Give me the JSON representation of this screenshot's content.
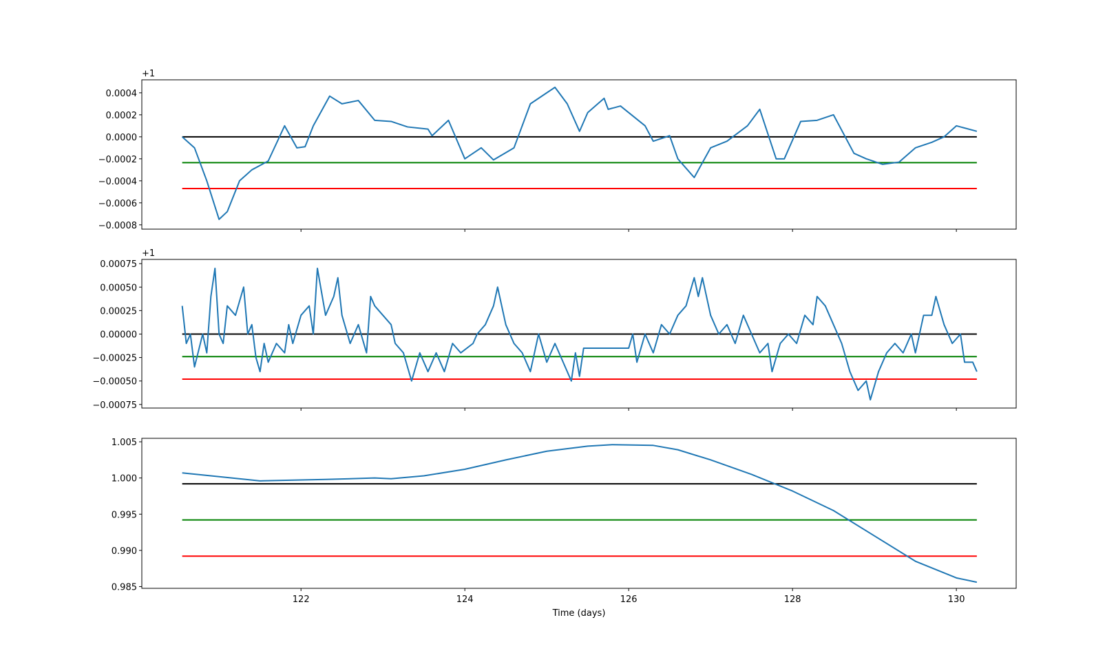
{
  "chart_data": [
    {
      "type": "line",
      "offset_text": "+1",
      "xlim": [
        120.057,
        130.73
      ],
      "xticks": [
        122,
        124,
        126,
        128,
        130
      ],
      "ylim": [
        -0.000839,
        0.000518
      ],
      "yticks": [
        {
          "value": 0.0004,
          "label": "0.0004"
        },
        {
          "value": 0.0002,
          "label": "0.0002"
        },
        {
          "value": 0,
          "label": "0.0000"
        },
        {
          "value": -0.0002,
          "label": "−0.0002"
        },
        {
          "value": -0.0004,
          "label": "−0.0004"
        },
        {
          "value": -0.0006,
          "label": "−0.0006"
        },
        {
          "value": -0.0008,
          "label": "−0.0008"
        }
      ],
      "hlines": [
        {
          "value": 0,
          "color": "#000000"
        },
        {
          "value": -0.000235,
          "color": "#008000"
        },
        {
          "value": -0.00047,
          "color": "#ff0000"
        }
      ],
      "x": [
        120.55,
        120.7,
        120.85,
        121.0,
        121.1,
        121.25,
        121.4,
        121.6,
        121.8,
        121.95,
        122.05,
        122.15,
        122.35,
        122.5,
        122.7,
        122.9,
        123.1,
        123.3,
        123.55,
        123.6,
        123.8,
        124.0,
        124.2,
        124.35,
        124.6,
        124.8,
        125.0,
        125.1,
        125.25,
        125.4,
        125.5,
        125.7,
        125.75,
        125.9,
        126.2,
        126.3,
        126.5,
        126.6,
        126.8,
        127.0,
        127.2,
        127.45,
        127.6,
        127.8,
        127.9,
        128.1,
        128.3,
        128.5,
        128.75,
        128.9,
        129.1,
        129.3,
        129.5,
        129.7,
        129.85,
        130.0,
        130.25
      ],
      "series": [
        {
          "color": "#1f77b4",
          "values": [
            0,
            -0.0001,
            -0.0004,
            -0.00075,
            -0.00068,
            -0.0004,
            -0.0003,
            -0.00022,
            0.0001,
            -0.0001,
            -9e-05,
            0.0001,
            0.00037,
            0.0003,
            0.00033,
            0.00015,
            0.00014,
            9e-05,
            7e-05,
            1e-05,
            0.00015,
            -0.0002,
            -0.0001,
            -0.00021,
            -0.0001,
            0.0003,
            0.0004,
            0.00045,
            0.0003,
            5e-05,
            0.00022,
            0.00035,
            0.00025,
            0.00028,
            0.0001,
            -4e-05,
            1e-05,
            -0.0002,
            -0.00037,
            -0.0001,
            -4e-05,
            0.0001,
            0.00025,
            -0.0002,
            -0.0002,
            0.00014,
            0.00015,
            0.0002,
            -0.00015,
            -0.0002,
            -0.00025,
            -0.00023,
            -0.0001,
            -5e-05,
            0,
            0.0001,
            5e-05
          ]
        }
      ]
    },
    {
      "type": "line",
      "offset_text": "+1",
      "xlim": [
        120.057,
        130.73
      ],
      "xticks": [
        122,
        124,
        126,
        128,
        130
      ],
      "ylim": [
        -0.000788,
        0.000795
      ],
      "yticks": [
        {
          "value": 0.00075,
          "label": "0.00075"
        },
        {
          "value": 0.0005,
          "label": "0.00050"
        },
        {
          "value": 0.00025,
          "label": "0.00025"
        },
        {
          "value": 0,
          "label": "0.00000"
        },
        {
          "value": -0.00025,
          "label": "−0.00025"
        },
        {
          "value": -0.0005,
          "label": "−0.00050"
        },
        {
          "value": -0.00075,
          "label": "−0.00075"
        }
      ],
      "hlines": [
        {
          "value": 0,
          "color": "#000000"
        },
        {
          "value": -0.00024,
          "color": "#008000"
        },
        {
          "value": -0.00048,
          "color": "#ff0000"
        }
      ],
      "x": [
        120.55,
        120.6,
        120.65,
        120.7,
        120.8,
        120.85,
        120.9,
        120.95,
        121.0,
        121.05,
        121.1,
        121.2,
        121.3,
        121.35,
        121.4,
        121.45,
        121.5,
        121.55,
        121.6,
        121.7,
        121.8,
        121.85,
        121.9,
        122.0,
        122.1,
        122.15,
        122.2,
        122.3,
        122.4,
        122.45,
        122.5,
        122.6,
        122.7,
        122.8,
        122.85,
        122.9,
        123.0,
        123.1,
        123.15,
        123.25,
        123.35,
        123.45,
        123.55,
        123.65,
        123.75,
        123.85,
        123.95,
        124.1,
        124.15,
        124.25,
        124.35,
        124.4,
        124.5,
        124.6,
        124.7,
        124.8,
        124.9,
        125.0,
        125.1,
        125.2,
        125.3,
        125.35,
        125.4,
        125.45,
        126.0,
        126.05,
        126.1,
        126.2,
        126.3,
        126.4,
        126.5,
        126.6,
        126.7,
        126.8,
        126.85,
        126.9,
        127.0,
        127.1,
        127.2,
        127.3,
        127.4,
        127.5,
        127.6,
        127.7,
        127.75,
        127.85,
        127.95,
        128.05,
        128.15,
        128.25,
        128.3,
        128.4,
        128.5,
        128.6,
        128.7,
        128.8,
        128.9,
        128.95,
        129.05,
        129.15,
        129.25,
        129.35,
        129.45,
        129.5,
        129.6,
        129.7,
        129.75,
        129.85,
        129.95,
        130.05,
        130.1,
        130.2,
        130.25
      ],
      "series": [
        {
          "color": "#1f77b4",
          "values": [
            0.0003,
            -0.0001,
            0,
            -0.00035,
            0,
            -0.0002,
            0.0004,
            0.0007,
            0,
            -0.0001,
            0.0003,
            0.0002,
            0.0005,
            0,
            0.0001,
            -0.00025,
            -0.0004,
            -0.0001,
            -0.0003,
            -0.0001,
            -0.0002,
            0.0001,
            -0.0001,
            0.0002,
            0.0003,
            0,
            0.0007,
            0.0002,
            0.0004,
            0.0006,
            0.0002,
            -0.0001,
            0.0001,
            -0.0002,
            0.0004,
            0.0003,
            0.0002,
            0.0001,
            -0.0001,
            -0.0002,
            -0.0005,
            -0.0002,
            -0.0004,
            -0.0002,
            -0.0004,
            -0.0001,
            -0.0002,
            -0.0001,
            0,
            0.0001,
            0.0003,
            0.0005,
            0.0001,
            -0.0001,
            -0.0002,
            -0.0004,
            0,
            -0.0003,
            -0.0001,
            -0.0003,
            -0.0005,
            -0.0002,
            -0.00045,
            -0.00015,
            -0.00015,
            0,
            -0.0003,
            0,
            -0.0002,
            0.0001,
            0,
            0.0002,
            0.0003,
            0.0006,
            0.0004,
            0.0006,
            0.0002,
            0,
            0.0001,
            -0.0001,
            0.0002,
            0,
            -0.0002,
            -0.0001,
            -0.0004,
            -0.0001,
            0,
            -0.0001,
            0.0002,
            0.0001,
            0.0004,
            0.0003,
            0.0001,
            -0.0001,
            -0.0004,
            -0.0006,
            -0.0005,
            -0.0007,
            -0.0004,
            -0.0002,
            -0.0001,
            -0.0002,
            0,
            -0.0002,
            0.0002,
            0.0002,
            0.0004,
            0.0001,
            -0.0001,
            0,
            -0.0003,
            -0.0003,
            -0.0004
          ]
        }
      ]
    },
    {
      "type": "line",
      "xlabel": "Time (days)",
      "xlim": [
        120.057,
        130.73
      ],
      "xticks": [
        122,
        124,
        126,
        128,
        130
      ],
      "ylim": [
        0.98476,
        1.00548
      ],
      "yticks": [
        {
          "value": 1.005,
          "label": "1.005"
        },
        {
          "value": 1.0,
          "label": "1.000"
        },
        {
          "value": 0.995,
          "label": "0.995"
        },
        {
          "value": 0.99,
          "label": "0.990"
        },
        {
          "value": 0.985,
          "label": "0.985"
        }
      ],
      "hlines": [
        {
          "value": 0.9992,
          "color": "#000000"
        },
        {
          "value": 0.9942,
          "color": "#008000"
        },
        {
          "value": 0.9892,
          "color": "#ff0000"
        }
      ],
      "x": [
        120.55,
        120.9,
        121.5,
        122.3,
        122.9,
        123.1,
        123.5,
        124.0,
        124.5,
        125.0,
        125.5,
        125.8,
        126.3,
        126.6,
        127.0,
        127.5,
        128.0,
        128.5,
        129.0,
        129.5,
        130.0,
        130.25
      ],
      "series": [
        {
          "color": "#1f77b4",
          "values": [
            1.0007,
            1.0003,
            0.9996,
            0.9998,
            1.0,
            0.9999,
            1.0003,
            1.0012,
            1.0025,
            1.0037,
            1.0044,
            1.0046,
            1.0045,
            1.0039,
            1.0025,
            1.0005,
            0.9982,
            0.9955,
            0.992,
            0.9885,
            0.9862,
            0.9856
          ]
        }
      ]
    }
  ]
}
